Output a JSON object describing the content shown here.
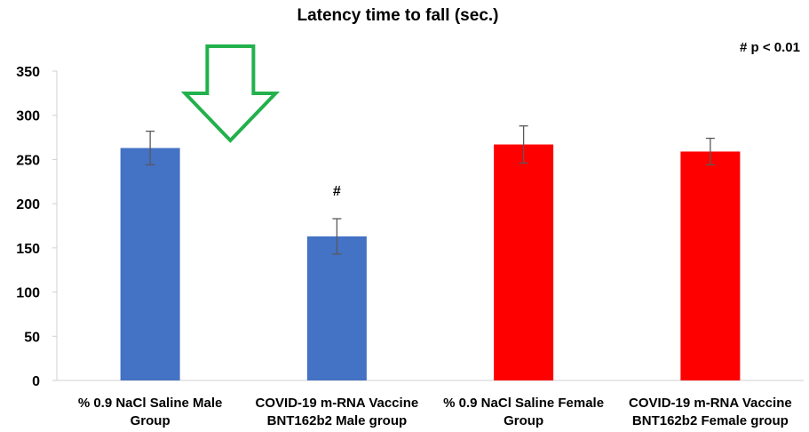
{
  "chart_data": {
    "type": "bar",
    "title": "Latency time to fall (sec.)",
    "xlabel": "",
    "ylabel": "",
    "ylim": [
      0,
      350
    ],
    "yticks": [
      0,
      50,
      100,
      150,
      200,
      250,
      300,
      350
    ],
    "grid": false,
    "categories": [
      [
        "% 0.9 NaCl Saline Male",
        "Group"
      ],
      [
        "COVID-19 m-RNA Vaccine",
        "BNT162b2 Male group"
      ],
      [
        "% 0.9 NaCl Saline Female",
        "Group"
      ],
      [
        "COVID-19 m-RNA Vaccine",
        "BNT162b2 Female group"
      ]
    ],
    "values": [
      263,
      163,
      267,
      259
    ],
    "errors": [
      19,
      20,
      21,
      15
    ],
    "bar_colors": [
      "#4472C4",
      "#4472C4",
      "#FF0000",
      "#FF0000"
    ],
    "significance_markers": [
      "",
      "#",
      "",
      ""
    ],
    "annotation": "# p < 0.01",
    "highlight_arrow": {
      "target_category_index": 1,
      "direction": "down",
      "color": "#22B14C"
    }
  }
}
